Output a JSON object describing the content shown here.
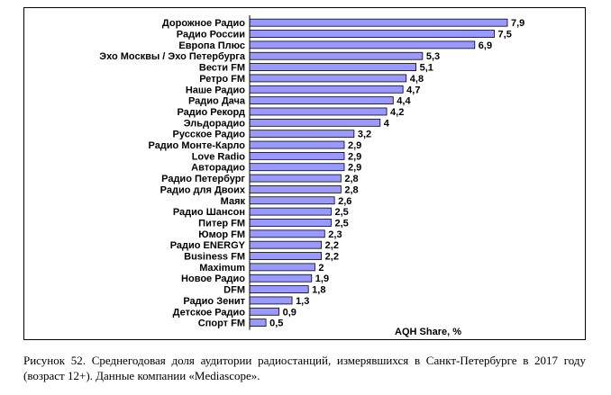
{
  "chart_data": {
    "type": "bar",
    "orientation": "horizontal",
    "categories": [
      "Дорожное Радио",
      "Радио России",
      "Европа Плюс",
      "Эхо Москвы / Эхо Петербурга",
      "Вести FM",
      "Ретро FM",
      "Наше Радио",
      "Радио Дача",
      "Радио Рекорд",
      "Эльдорадио",
      "Русское Радио",
      "Радио Монте-Карло",
      "Love Radio",
      "Авторадио",
      "Радио Петербург",
      "Радио для Двоих",
      "Маяк",
      "Радио Шансон",
      "Питер FM",
      "Юмор FM",
      "Радио ENERGY",
      "Business FM",
      "Maximum",
      "Новое Радио",
      "DFM",
      "Радио Зенит",
      "Детское Радио",
      "Спорт FM"
    ],
    "values": [
      7.9,
      7.5,
      6.9,
      5.3,
      5.1,
      4.8,
      4.7,
      4.4,
      4.2,
      4,
      3.2,
      2.9,
      2.9,
      2.9,
      2.8,
      2.8,
      2.6,
      2.5,
      2.5,
      2.3,
      2.2,
      2.2,
      2,
      1.9,
      1.8,
      1.3,
      0.9,
      0.5
    ],
    "value_labels": [
      "7,9",
      "7,5",
      "6,9",
      "5,3",
      "5,1",
      "4,8",
      "4,7",
      "4,4",
      "4,2",
      "4",
      "3,2",
      "2,9",
      "2,9",
      "2,9",
      "2,8",
      "2,8",
      "2,6",
      "2,5",
      "2,5",
      "2,3",
      "2,2",
      "2,2",
      "2",
      "1,9",
      "1,8",
      "1,3",
      "0,9",
      "0,5"
    ],
    "xlabel": "AQH Share, %",
    "xlim": [
      0,
      7.9
    ],
    "grid": false,
    "bar_color": "#9999ff",
    "bar_edge_color": "#000000"
  },
  "caption": "Рисунок 52. Среднегодовая доля аудитории радиостанций, измерявшихся в Санкт-Петербурге в 2017 году (возраст 12+). Данные компании «Mediascope»."
}
